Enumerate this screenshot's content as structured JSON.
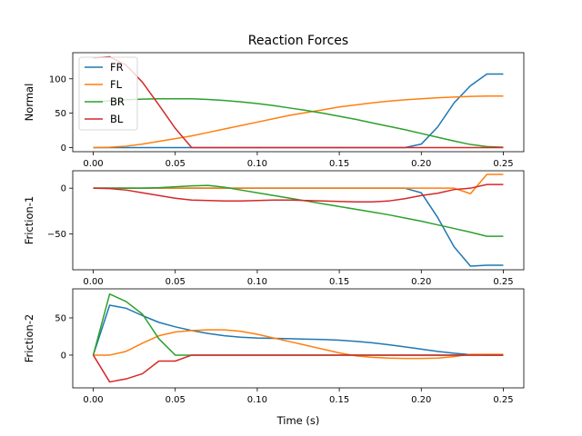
{
  "title": "Reaction Forces",
  "xlabel": "Time (s)",
  "chart_data": [
    {
      "type": "line",
      "title": "Reaction Forces",
      "xlabel": "",
      "ylabel": "Normal",
      "xlim": [
        -0.0125,
        0.2625
      ],
      "ylim": [
        -6,
        138
      ],
      "xticks": [
        0.0,
        0.05,
        0.1,
        0.15,
        0.2,
        0.25
      ],
      "xtick_labels": [
        "0.00",
        "0.05",
        "0.10",
        "0.15",
        "0.20",
        "0.25"
      ],
      "yticks": [
        0,
        50,
        100
      ],
      "ytick_labels": [
        "0",
        "50",
        "100"
      ],
      "legend": {
        "placement": "upper-left"
      },
      "x": [
        0.0,
        0.01,
        0.02,
        0.03,
        0.04,
        0.05,
        0.06,
        0.07,
        0.08,
        0.09,
        0.1,
        0.11,
        0.12,
        0.13,
        0.14,
        0.15,
        0.16,
        0.17,
        0.18,
        0.19,
        0.2,
        0.21,
        0.22,
        0.23,
        0.24,
        0.25
      ],
      "series": [
        {
          "name": "FR",
          "color": "#1f77b4",
          "values": [
            0,
            0,
            0,
            0,
            0,
            0,
            0,
            0,
            0,
            0,
            0,
            0,
            0,
            0,
            0,
            0,
            0,
            0,
            0,
            0,
            5,
            30,
            65,
            90,
            107,
            107
          ]
        },
        {
          "name": "FL",
          "color": "#ff7f0e",
          "values": [
            0,
            0.5,
            2,
            5,
            9,
            13,
            17,
            22,
            27,
            32,
            37,
            42,
            47,
            51,
            55,
            59,
            62,
            65,
            67.5,
            69.5,
            71,
            72.5,
            73.5,
            74.5,
            75,
            75
          ]
        },
        {
          "name": "BR",
          "color": "#2ca02c",
          "values": [
            66,
            68,
            69.5,
            70.5,
            71,
            71,
            71,
            70,
            68.5,
            66.5,
            64,
            61,
            57.5,
            54,
            50,
            45.5,
            41,
            36,
            31,
            26,
            20.5,
            15,
            9.5,
            4.5,
            1.5,
            0.5
          ]
        },
        {
          "name": "BL",
          "color": "#d62728",
          "values": [
            130,
            132,
            120,
            95,
            62,
            28,
            0,
            0,
            0,
            0,
            0,
            0,
            0,
            0,
            0,
            0,
            0,
            0,
            0,
            0,
            0,
            0,
            0,
            0,
            0,
            0
          ]
        }
      ]
    },
    {
      "type": "line",
      "title": "",
      "xlabel": "",
      "ylabel": "Friction-1",
      "xlim": [
        -0.0125,
        0.2625
      ],
      "ylim": [
        -89,
        19
      ],
      "xticks": [
        0.0,
        0.05,
        0.1,
        0.15,
        0.2,
        0.25
      ],
      "xtick_labels": [
        "0.00",
        "0.05",
        "0.10",
        "0.15",
        "0.20",
        "0.25"
      ],
      "yticks": [
        -50,
        0
      ],
      "ytick_labels": [
        "−50",
        "0"
      ],
      "x": [
        0.0,
        0.01,
        0.02,
        0.03,
        0.04,
        0.05,
        0.06,
        0.07,
        0.08,
        0.09,
        0.1,
        0.11,
        0.12,
        0.13,
        0.14,
        0.15,
        0.16,
        0.17,
        0.18,
        0.19,
        0.2,
        0.21,
        0.22,
        0.23,
        0.24,
        0.25
      ],
      "series": [
        {
          "name": "FR",
          "color": "#1f77b4",
          "values": [
            0,
            0,
            0,
            0,
            0,
            0,
            0,
            0,
            0,
            0,
            0,
            0,
            0,
            0,
            0,
            0,
            0,
            0,
            0,
            0,
            -5,
            -32,
            -64,
            -85,
            -84,
            -84
          ]
        },
        {
          "name": "FL",
          "color": "#ff7f0e",
          "values": [
            0,
            0,
            0,
            0,
            0,
            0,
            0,
            0,
            0,
            0,
            0,
            0,
            0,
            0,
            0,
            0,
            0,
            0,
            0,
            0,
            0,
            0,
            0,
            -6,
            15,
            15
          ]
        },
        {
          "name": "BR",
          "color": "#2ca02c",
          "values": [
            0,
            0,
            0,
            0,
            0.5,
            1.5,
            2.5,
            3,
            1,
            -2,
            -5,
            -8,
            -11,
            -14,
            -17,
            -20,
            -23,
            -26,
            -29,
            -32.5,
            -36,
            -40,
            -44,
            -48,
            -52.5,
            -52.5
          ]
        },
        {
          "name": "BL",
          "color": "#d62728",
          "values": [
            0,
            -0.5,
            -2,
            -5,
            -8,
            -11,
            -13,
            -13.5,
            -14,
            -14,
            -13.5,
            -13,
            -13,
            -13.5,
            -14,
            -14.5,
            -15,
            -15,
            -14,
            -11.5,
            -8,
            -5.5,
            -1.5,
            0,
            4,
            4
          ]
        }
      ]
    },
    {
      "type": "line",
      "title": "",
      "xlabel": "Time (s)",
      "ylabel": "Friction-2",
      "xlim": [
        -0.0125,
        0.2625
      ],
      "ylim": [
        -44,
        89
      ],
      "xticks": [
        0.0,
        0.05,
        0.1,
        0.15,
        0.2,
        0.25
      ],
      "xtick_labels": [
        "0.00",
        "0.05",
        "0.10",
        "0.15",
        "0.20",
        "0.25"
      ],
      "yticks": [
        0,
        50
      ],
      "ytick_labels": [
        "0",
        "50"
      ],
      "x": [
        0.0,
        0.01,
        0.02,
        0.03,
        0.04,
        0.05,
        0.06,
        0.07,
        0.08,
        0.09,
        0.1,
        0.11,
        0.12,
        0.13,
        0.14,
        0.15,
        0.16,
        0.17,
        0.18,
        0.19,
        0.2,
        0.21,
        0.22,
        0.23,
        0.24,
        0.25
      ],
      "series": [
        {
          "name": "FR",
          "color": "#1f77b4",
          "values": [
            0,
            67,
            63,
            53,
            44,
            38,
            33,
            29,
            26,
            24,
            23,
            22.5,
            22,
            21.5,
            21,
            20,
            18.5,
            16.5,
            14,
            11,
            8,
            5,
            2.5,
            0.5,
            0,
            0
          ]
        },
        {
          "name": "FL",
          "color": "#ff7f0e",
          "values": [
            0,
            0,
            5,
            16,
            26,
            31,
            33,
            34,
            34,
            32,
            28,
            23,
            18,
            13,
            8,
            3,
            -1,
            -3,
            -4,
            -4.5,
            -4.5,
            -4,
            -2,
            1,
            1,
            1
          ]
        },
        {
          "name": "BR",
          "color": "#2ca02c",
          "values": [
            0,
            82,
            72,
            55,
            22,
            0,
            0,
            0,
            0,
            0,
            0,
            0,
            0,
            0,
            0,
            0,
            0,
            0,
            0,
            0,
            0,
            0,
            0,
            0,
            0,
            0
          ]
        },
        {
          "name": "BL",
          "color": "#d62728",
          "values": [
            0,
            -36,
            -32,
            -25,
            -8,
            -8,
            0,
            0,
            0,
            0,
            0,
            0,
            0,
            0,
            0,
            0,
            0,
            0,
            0,
            0,
            0,
            0,
            0,
            0,
            0,
            0
          ]
        }
      ]
    }
  ]
}
